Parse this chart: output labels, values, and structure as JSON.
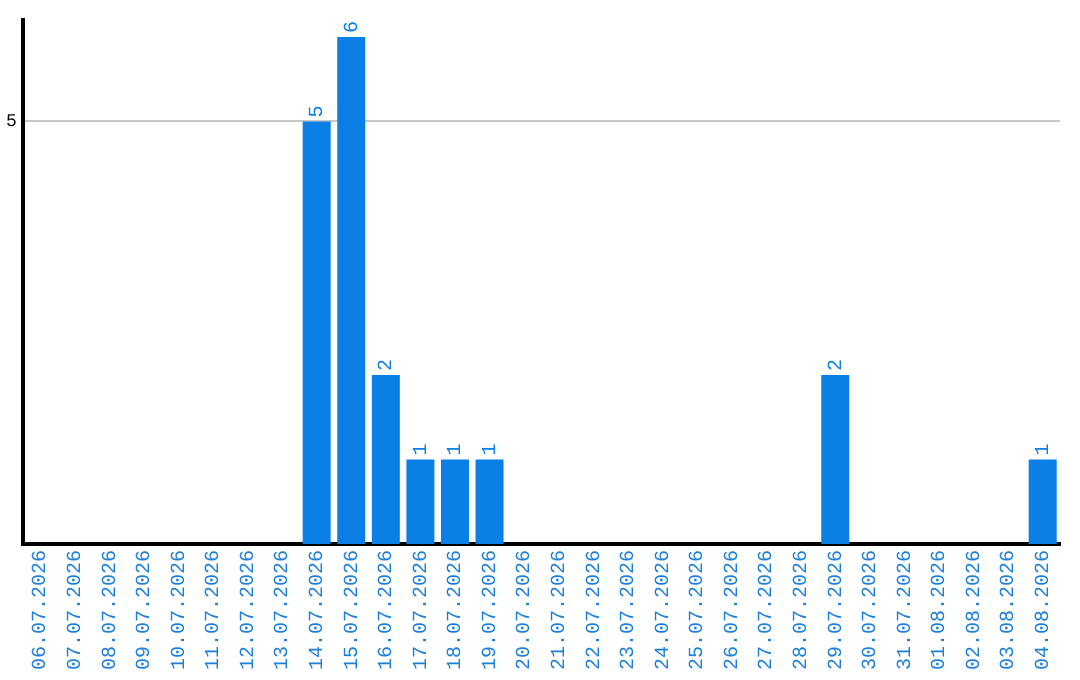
{
  "chart_data": {
    "type": "bar",
    "categories": [
      "06.07.2026",
      "07.07.2026",
      "08.07.2026",
      "09.07.2026",
      "10.07.2026",
      "11.07.2026",
      "12.07.2026",
      "13.07.2026",
      "14.07.2026",
      "15.07.2026",
      "16.07.2026",
      "17.07.2026",
      "18.07.2026",
      "19.07.2026",
      "20.07.2026",
      "21.07.2026",
      "22.07.2026",
      "23.07.2026",
      "24.07.2026",
      "25.07.2026",
      "26.07.2026",
      "27.07.2026",
      "28.07.2026",
      "29.07.2026",
      "30.07.2026",
      "31.07.2026",
      "01.08.2026",
      "02.08.2026",
      "03.08.2026",
      "04.08.2026"
    ],
    "values": [
      0,
      0,
      0,
      0,
      0,
      0,
      0,
      0,
      5,
      6,
      2,
      1,
      1,
      1,
      0,
      0,
      0,
      0,
      0,
      0,
      0,
      0,
      0,
      2,
      0,
      0,
      0,
      0,
      0,
      1
    ],
    "value_labels": [
      null,
      null,
      null,
      null,
      null,
      null,
      null,
      null,
      "5",
      "6",
      "2",
      "1",
      "1",
      "1",
      null,
      null,
      null,
      null,
      null,
      null,
      null,
      null,
      null,
      "2",
      null,
      null,
      null,
      null,
      null,
      "1"
    ],
    "color": "#0a7fe6",
    "ylim": [
      0,
      6.2
    ],
    "yticks": [
      5
    ],
    "grid": "y",
    "legend": false
  }
}
